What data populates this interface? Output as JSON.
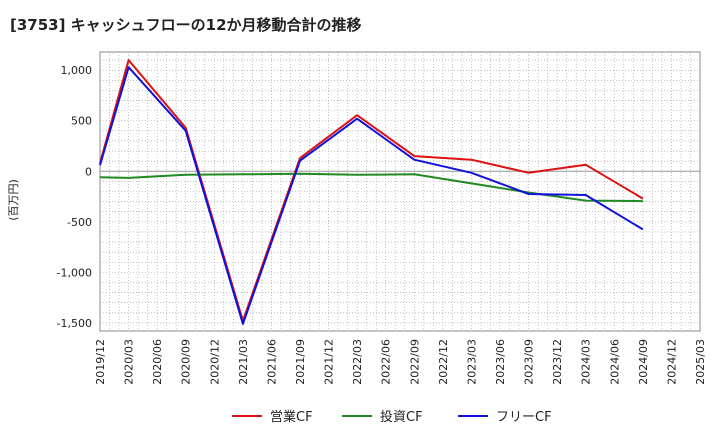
{
  "chart_data": {
    "type": "line",
    "title": "[3753]  キャッシュフローの12か月移動合計の推移",
    "ylabel": "(百万円)",
    "xlabel": "",
    "ylim": [
      -1580,
      1180
    ],
    "y_ticks": [
      1000,
      500,
      0,
      -500,
      -1000,
      -1500
    ],
    "y_tick_labels": [
      "1,000",
      "500",
      "0",
      "-500",
      "-1,000",
      "-1,500"
    ],
    "x_tick_labels": [
      "2019/12",
      "2020/03",
      "2020/06",
      "2020/09",
      "2020/12",
      "2021/03",
      "2021/06",
      "2021/09",
      "2021/12",
      "2022/03",
      "2022/06",
      "2022/09",
      "2022/12",
      "2023/03",
      "2023/06",
      "2023/09",
      "2023/12",
      "2024/03",
      "2024/06",
      "2024/09",
      "2024/12",
      "2025/03"
    ],
    "grid": true,
    "legend_position": "bottom",
    "series": [
      {
        "name": "営業CF",
        "color": "#dd1111",
        "points": [
          [
            0,
            80
          ],
          [
            1,
            1100
          ],
          [
            3,
            430
          ],
          [
            5,
            -1480
          ],
          [
            7,
            130
          ],
          [
            9,
            555
          ],
          [
            11,
            150
          ],
          [
            13,
            115
          ],
          [
            15,
            -15
          ],
          [
            17,
            65
          ],
          [
            19,
            -270
          ]
        ]
      },
      {
        "name": "投資CF",
        "color": "#228822",
        "points": [
          [
            0,
            -60
          ],
          [
            1,
            -65
          ],
          [
            3,
            -35
          ],
          [
            5,
            -30
          ],
          [
            7,
            -25
          ],
          [
            9,
            -35
          ],
          [
            11,
            -30
          ],
          [
            13,
            -120
          ],
          [
            15,
            -210
          ],
          [
            17,
            -290
          ],
          [
            19,
            -295
          ]
        ]
      },
      {
        "name": "フリーCF",
        "color": "#1111dd",
        "points": [
          [
            0,
            60
          ],
          [
            1,
            1030
          ],
          [
            3,
            400
          ],
          [
            5,
            -1510
          ],
          [
            7,
            105
          ],
          [
            9,
            520
          ],
          [
            11,
            115
          ],
          [
            13,
            -15
          ],
          [
            15,
            -225
          ],
          [
            17,
            -235
          ],
          [
            19,
            -575
          ]
        ]
      }
    ]
  }
}
